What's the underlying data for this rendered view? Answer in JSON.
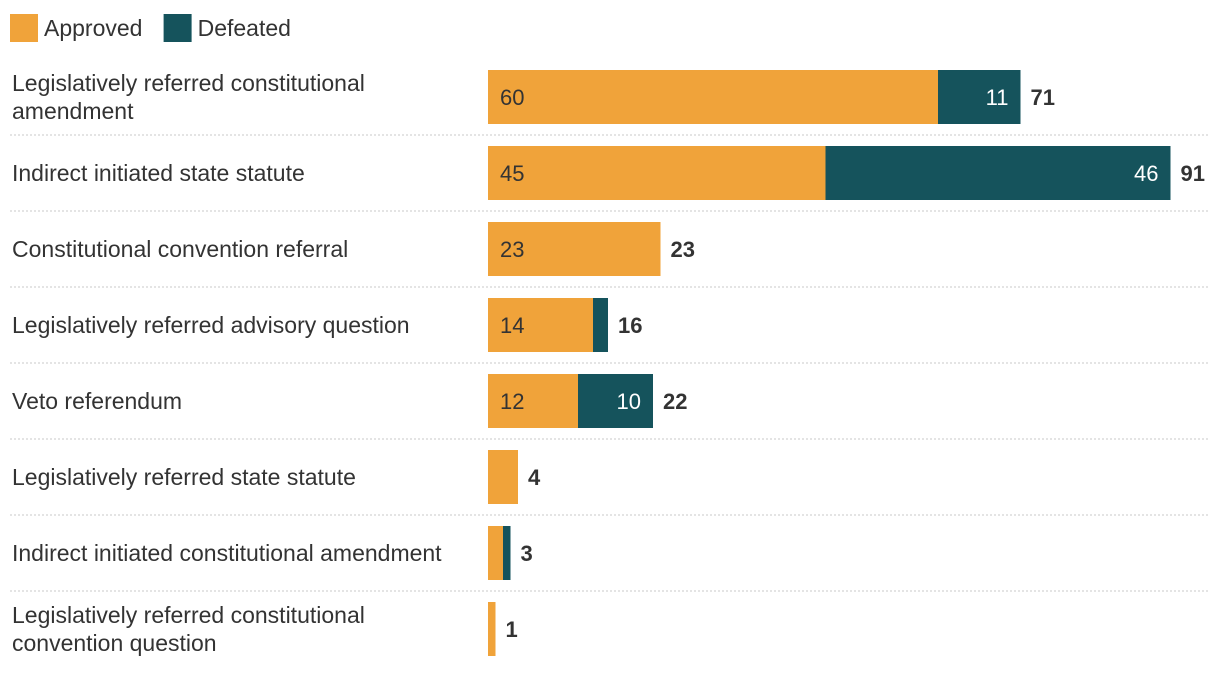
{
  "chart_data": {
    "type": "bar",
    "orientation": "horizontal",
    "stacked": true,
    "legend_position": "top-left",
    "grid": false,
    "categories": [
      "Legislatively referred constitutional amendment",
      "Indirect initiated state statute",
      "Constitutional convention referral",
      "Legislatively referred advisory question",
      "Veto referendum",
      "Legislatively referred state statute",
      "Indirect initiated constitutional amendment",
      "Legislatively referred constitutional convention question"
    ],
    "series": [
      {
        "name": "Approved",
        "color": "#f0a33a",
        "values": [
          60,
          45,
          23,
          14,
          12,
          4,
          2,
          1
        ]
      },
      {
        "name": "Defeated",
        "color": "#15535c",
        "values": [
          11,
          46,
          0,
          2,
          10,
          0,
          1,
          0
        ]
      }
    ],
    "segment_labels": {
      "Approved": [
        "60",
        "45",
        "23",
        "14",
        "12",
        "",
        "",
        ""
      ],
      "Defeated": [
        "11",
        "46",
        "",
        "",
        "10",
        "",
        "",
        ""
      ]
    },
    "totals": [
      71,
      91,
      23,
      16,
      22,
      4,
      3,
      1
    ],
    "xlim": [
      0,
      91
    ]
  }
}
